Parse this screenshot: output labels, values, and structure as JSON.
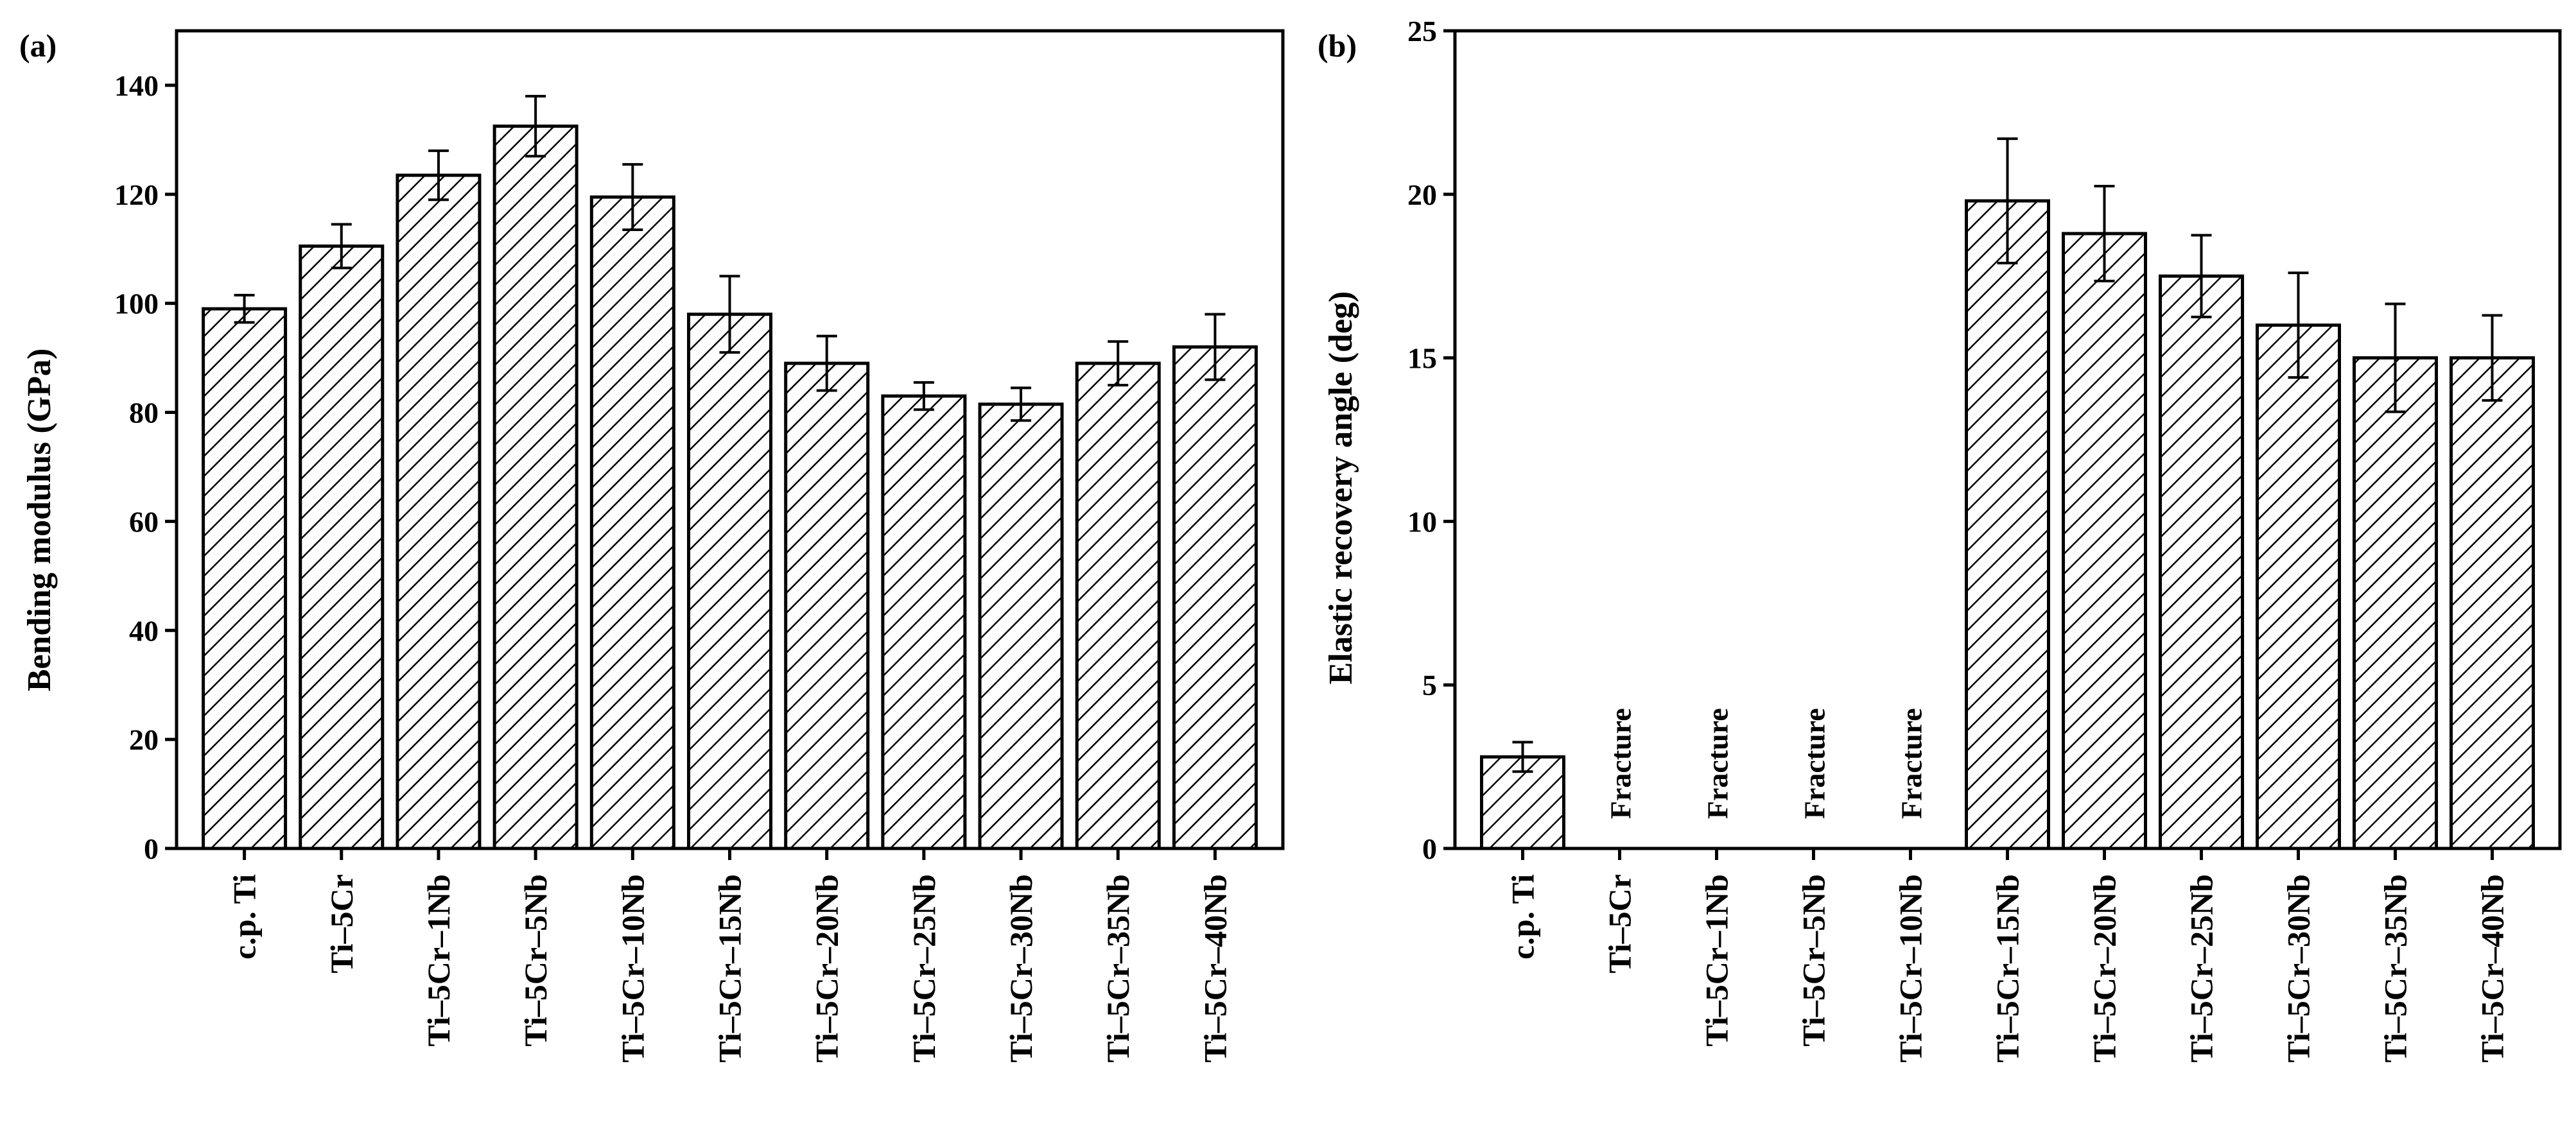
{
  "chart_data": [
    {
      "type": "bar",
      "panel_label": "(a)",
      "ylabel": "Bending modulus (GPa)",
      "xlabel": "",
      "ylim": [
        0,
        150
      ],
      "yticks": [
        0,
        20,
        40,
        60,
        80,
        100,
        120,
        140
      ],
      "categories": [
        "c.p. Ti",
        "Ti–5Cr",
        "Ti–5Cr–1Nb",
        "Ti–5Cr–5Nb",
        "Ti–5Cr–10Nb",
        "Ti–5Cr–15Nb",
        "Ti–5Cr–20Nb",
        "Ti–5Cr–25Nb",
        "Ti–5Cr–30Nb",
        "Ti–5Cr–35Nb",
        "Ti–5Cr–40Nb"
      ],
      "values": [
        99,
        110.5,
        123.5,
        132.5,
        119.5,
        98,
        89,
        83,
        81.5,
        89,
        92
      ],
      "errors": [
        2.5,
        4,
        4.5,
        5.5,
        6,
        7,
        5,
        2.5,
        3,
        4,
        6
      ],
      "annotations": [],
      "pattern": "diagonal-hatch",
      "grid": false,
      "legend": "none"
    },
    {
      "type": "bar",
      "panel_label": "(b)",
      "ylabel": "Elastic recovery angle (deg)",
      "xlabel": "",
      "ylim": [
        0,
        25
      ],
      "yticks": [
        0,
        5,
        10,
        15,
        20,
        25
      ],
      "categories": [
        "c.p. Ti",
        "Ti–5Cr",
        "Ti–5Cr–1Nb",
        "Ti–5Cr–5Nb",
        "Ti–5Cr–10Nb",
        "Ti–5Cr–15Nb",
        "Ti–5Cr–20Nb",
        "Ti–5Cr–25Nb",
        "Ti–5Cr–30Nb",
        "Ti–5Cr–35Nb",
        "Ti–5Cr–40Nb"
      ],
      "values": [
        2.8,
        null,
        null,
        null,
        null,
        19.8,
        18.8,
        17.5,
        16,
        15,
        15
      ],
      "errors": [
        0.45,
        null,
        null,
        null,
        null,
        1.9,
        1.45,
        1.25,
        1.6,
        1.65,
        1.3
      ],
      "annotations": [
        "",
        "Fracture",
        "Fracture",
        "Fracture",
        "Fracture",
        "",
        "",
        "",
        "",
        "",
        ""
      ],
      "pattern": "diagonal-hatch",
      "grid": false,
      "legend": "none"
    }
  ]
}
